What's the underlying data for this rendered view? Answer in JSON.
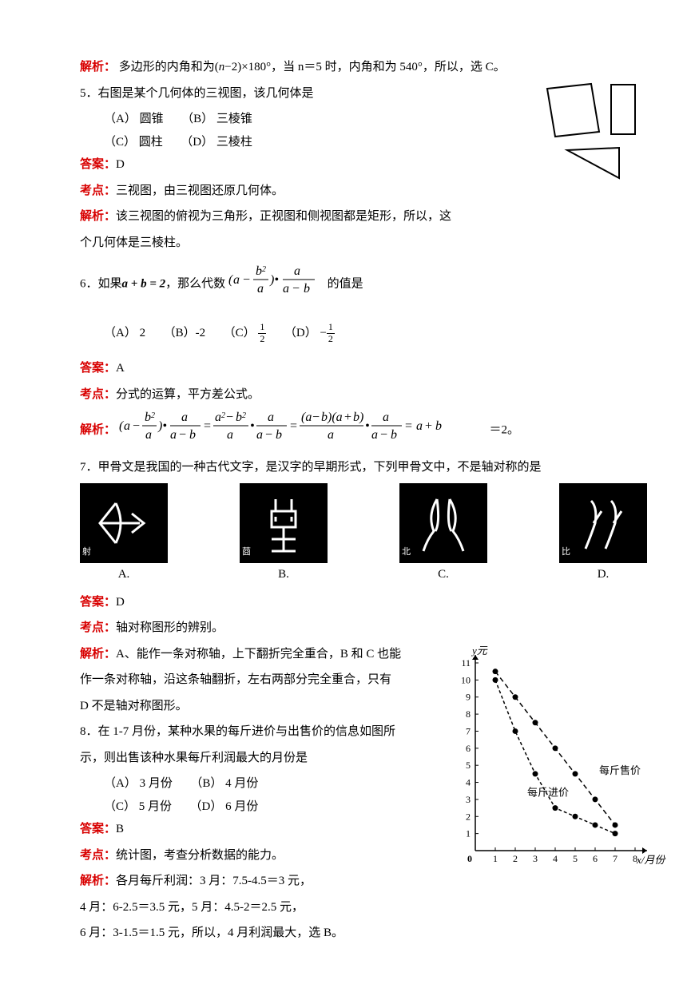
{
  "q4_ans": {
    "jiexi_label": "解析：",
    "jiexi_text": "多边形的内角和为(n−2)×180°，当 n＝5 时，内角和为 540°，所以，选 C。"
  },
  "q5": {
    "stem": "5．右图是某个几何体的三视图，该几何体是",
    "optA": "（A） 圆锥",
    "optB": "（B） 三棱锥",
    "optC": "（C） 圆柱",
    "optD": "（D） 三棱柱",
    "ans_label": "答案：",
    "ans": "D",
    "kd_label": "考点：",
    "kd": "三视图，由三视图还原几何体。",
    "jx_label": "解析：",
    "jx1": "该三视图的俯视为三角形，正视图和侧视图都是矩形，所以，这",
    "jx2": "个几何体是三棱柱。"
  },
  "q6": {
    "stem_a": "6．如果",
    "stem_b": "a + b = 2",
    "stem_c": "，那么代数 ",
    "stem_d": " 的值是",
    "optA": "（A） 2",
    "optB": "（B）-2",
    "optC_pre": "（C） ",
    "optD_pre": "（D） −",
    "frac_num": "1",
    "frac_den": "2",
    "ans_label": "答案：",
    "ans": "A",
    "kd_label": "考点：",
    "kd": "分式的运算，平方差公式。",
    "jx_label": "解析：",
    "jx_tail": " ＝2。"
  },
  "q7": {
    "stem": "7．甲骨文是我国的一种古代文字，是汉字的早期形式，下列甲骨文中，不是轴对称的是",
    "labels": {
      "a": "A.",
      "b": "B.",
      "c": "C.",
      "d": "D."
    },
    "inside": {
      "a": "射",
      "b": "莔",
      "c": "北",
      "d": "比"
    },
    "ans_label": "答案：",
    "ans": "D",
    "kd_label": "考点：",
    "kd": "轴对称图形的辨别。",
    "jx_label": "解析：",
    "jx1": "A、能作一条对称轴，上下翻折完全重合，B 和 C 也能",
    "jx2": "作一条对称轴，沿这条轴翻折，左右两部分完全重合，只有",
    "jx3": "D 不是轴对称图形。"
  },
  "q8": {
    "stem1": "8．在 1-7 月份，某种水果的每斤进价与出售价的信息如图所",
    "stem2": "示，则出售该种水果每斤利润最大的月份是",
    "optA": "（A） 3 月份",
    "optB": "（B） 4 月份",
    "optC": "（C） 5 月份",
    "optD": "（D） 6 月份",
    "ans_label": "答案：",
    "ans": "B",
    "kd_label": "考点：",
    "kd": "统计图，考查分析数据的能力。",
    "jx_label": "解析：",
    "jx1": "各月每斤利润：3 月：7.5-4.5＝3 元，",
    "jx2": "4 月：6-2.5＝3.5 元，5 月：4.5-2＝2.5 元，",
    "jx3": "6 月：3-1.5＝1.5 元，所以，4 月利润最大，选 B。",
    "chart": {
      "ylabel": "y元",
      "xlabel": "x/月份",
      "cost_label": "每斤进价",
      "sell_label": "每斤售价",
      "x": [
        1,
        2,
        3,
        4,
        5,
        6,
        7
      ],
      "cost": [
        10,
        7,
        4.5,
        2.5,
        2,
        1.5,
        1
      ],
      "sell": [
        10.5,
        9,
        7.5,
        6,
        4.5,
        3,
        1.5
      ],
      "ymax": 11
    }
  }
}
